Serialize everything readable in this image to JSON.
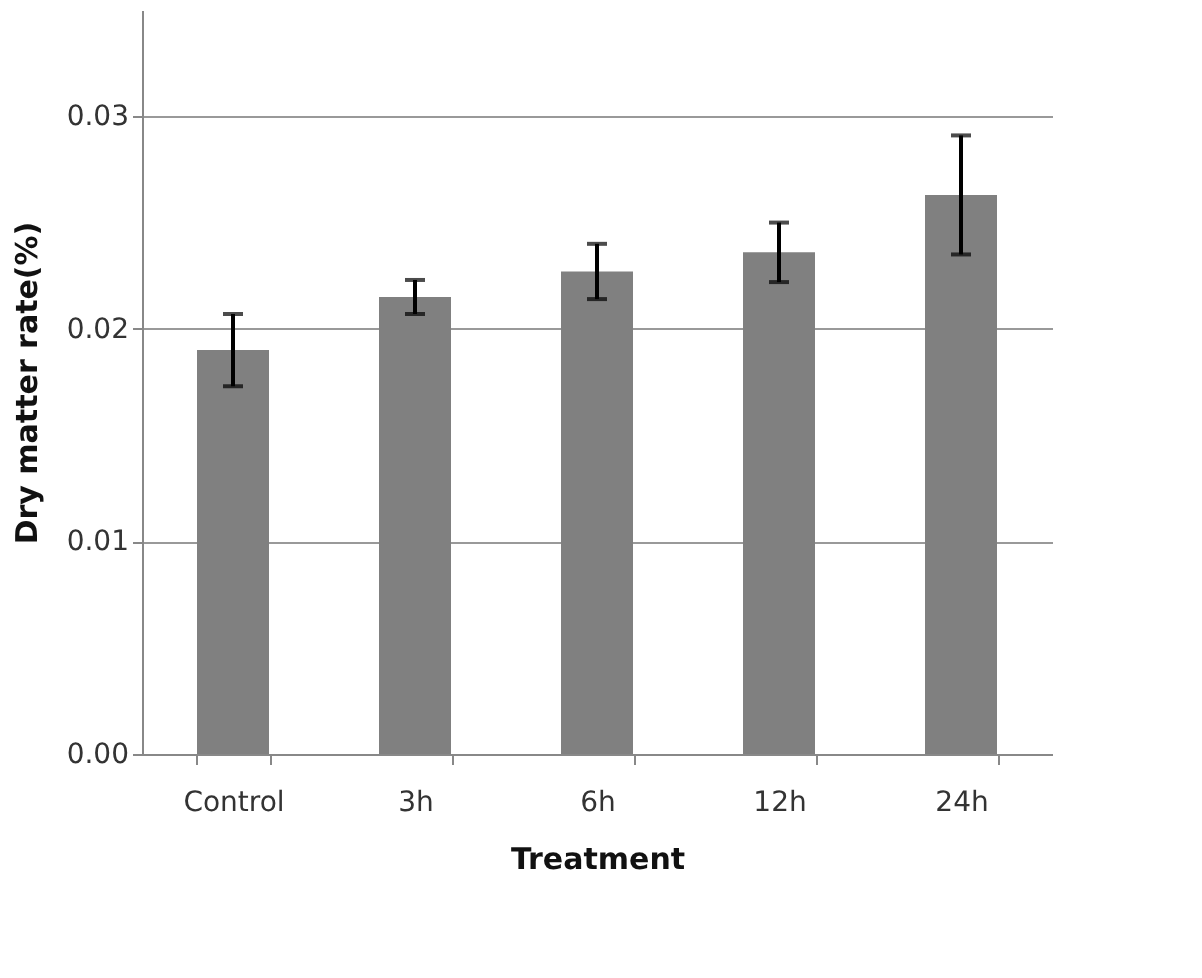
{
  "chart_data": {
    "type": "bar",
    "xlabel": "Treatment",
    "ylabel": "Dry matter rate(%)",
    "categories": [
      "Control",
      "3h",
      "6h",
      "12h",
      "24h"
    ],
    "values": [
      0.019,
      0.0215,
      0.0227,
      0.0236,
      0.0263
    ],
    "errors": [
      0.0017,
      0.0008,
      0.0013,
      0.0014,
      0.0028
    ],
    "color": "#808080",
    "ylim": [
      0,
      0.035
    ],
    "yticks": [
      {
        "value": 0,
        "label": "0.00"
      },
      {
        "value": 0.01,
        "label": "0.01"
      },
      {
        "value": 0.02,
        "label": "0.02"
      },
      {
        "value": 0.03,
        "label": "0.03"
      }
    ],
    "grid": "y"
  }
}
